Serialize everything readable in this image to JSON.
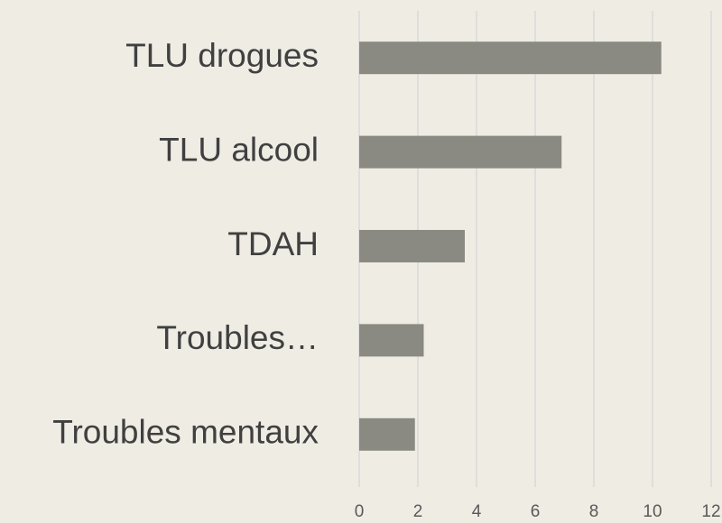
{
  "chart_data": {
    "type": "bar",
    "orientation": "horizontal",
    "categories": [
      "TLU drogues",
      "TLU alcool",
      "TDAH",
      "Troubles…",
      "Troubles mentaux"
    ],
    "values": [
      10.3,
      6.9,
      3.6,
      2.2,
      1.9
    ],
    "color": "#8a8a82",
    "xlim": [
      0,
      12
    ],
    "xticks": [
      0,
      2,
      4,
      6,
      8,
      10,
      12
    ],
    "grid": true
  }
}
